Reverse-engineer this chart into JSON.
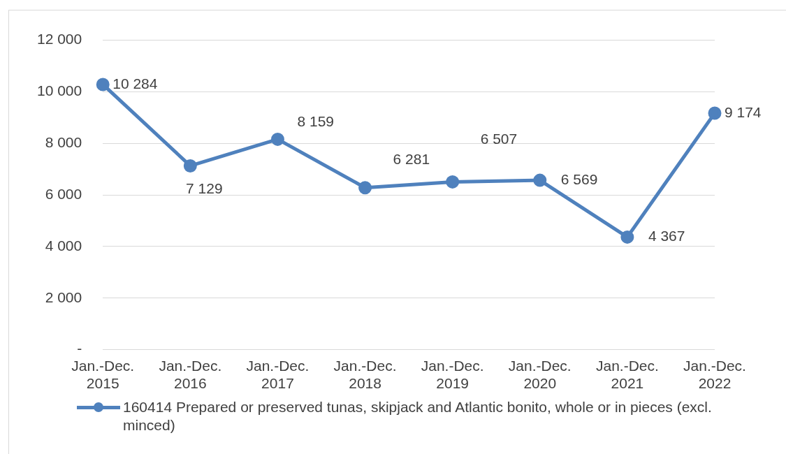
{
  "chart_data": {
    "type": "line",
    "categories": [
      "Jan.-Dec. 2015",
      "Jan.-Dec. 2016",
      "Jan.-Dec. 2017",
      "Jan.-Dec. 2018",
      "Jan.-Dec. 2019",
      "Jan.-Dec. 2020",
      "Jan.-Dec. 2021",
      "Jan.-Dec. 2022"
    ],
    "series": [
      {
        "name": "160414 Prepared or preserved tunas, skipjack and Atlantic bonito, whole or in pieces (excl. minced)",
        "color": "#4f81bd",
        "values": [
          10284,
          7129,
          8159,
          6281,
          6507,
          6569,
          4367,
          9174
        ],
        "value_labels": [
          "10 284",
          "7 129",
          "8 159",
          "6 281",
          "6 507",
          "6 569",
          "4 367",
          "9 174"
        ]
      }
    ],
    "ylim": [
      0,
      12000
    ],
    "yticks": [
      {
        "value": 0,
        "label": "-"
      },
      {
        "value": 2000,
        "label": "2 000"
      },
      {
        "value": 4000,
        "label": "4 000"
      },
      {
        "value": 6000,
        "label": "6 000"
      },
      {
        "value": 8000,
        "label": "8 000"
      },
      {
        "value": 10000,
        "label": "10 000"
      },
      {
        "value": 12000,
        "label": "12 000"
      }
    ],
    "grid": "y",
    "legend": "bottom",
    "marker": "circle",
    "line_style": "solid"
  }
}
